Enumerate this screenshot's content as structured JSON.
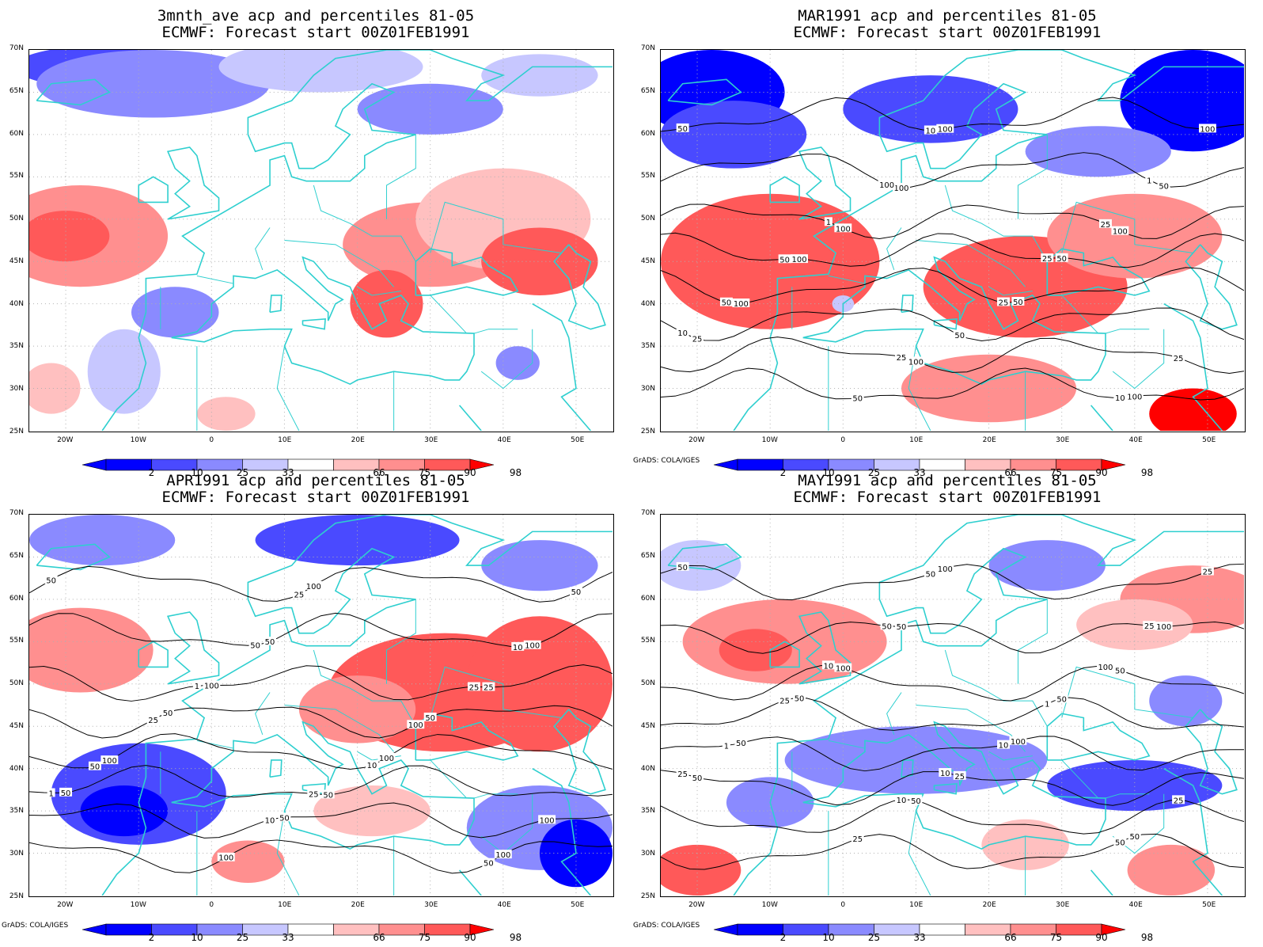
{
  "colors": {
    "p2": "#0000ff",
    "p10": "#4a4aff",
    "p25": "#8a8aff",
    "p33": "#c7c7ff",
    "p66": "#ffc0c0",
    "p75": "#ff8f8f",
    "p90": "#ff5959",
    "p98": "#ff0000",
    "coast": "#2ecfcf",
    "contour": "#000000",
    "grid": "#b0b0b0"
  },
  "lat_labels": [
    "70N",
    "65N",
    "60N",
    "55N",
    "50N",
    "45N",
    "40N",
    "35N",
    "30N",
    "25N"
  ],
  "lon_labels": [
    "20W",
    "10W",
    "0",
    "10E",
    "20E",
    "30E",
    "40E",
    "50E"
  ],
  "colorbar_labels": [
    "2",
    "10",
    "25",
    "33",
    "66",
    "75",
    "90",
    "98"
  ],
  "credit": "GrADS: COLA/IGES",
  "panels": [
    {
      "title_line1": "3mnth_ave acp and percentiles 81-05",
      "title_line2": "ECMWF: Forecast start 00Z01FEB1991",
      "show_credit": false,
      "contour_labels": [],
      "blobs": [
        {
          "lon": -15,
          "lat": 68,
          "rlon": 12,
          "rlat": 2.5,
          "cls": "p10"
        },
        {
          "lon": -8,
          "lat": 66,
          "rlon": 16,
          "rlat": 4,
          "cls": "p25"
        },
        {
          "lon": 15,
          "lat": 68,
          "rlon": 14,
          "rlat": 3,
          "cls": "p33"
        },
        {
          "lon": 30,
          "lat": 63,
          "rlon": 10,
          "rlat": 3,
          "cls": "p25"
        },
        {
          "lon": 45,
          "lat": 67,
          "rlon": 8,
          "rlat": 2.5,
          "cls": "p33"
        },
        {
          "lon": -18,
          "lat": 48,
          "rlon": 12,
          "rlat": 6,
          "cls": "p75"
        },
        {
          "lon": -20,
          "lat": 48,
          "rlon": 6,
          "rlat": 3,
          "cls": "p90"
        },
        {
          "lon": 30,
          "lat": 47,
          "rlon": 12,
          "rlat": 5,
          "cls": "p75"
        },
        {
          "lon": 40,
          "lat": 50,
          "rlon": 12,
          "rlat": 6,
          "cls": "p66"
        },
        {
          "lon": 24,
          "lat": 40,
          "rlon": 5,
          "rlat": 4,
          "cls": "p90"
        },
        {
          "lon": 45,
          "lat": 45,
          "rlon": 8,
          "rlat": 4,
          "cls": "p90"
        },
        {
          "lon": -5,
          "lat": 39,
          "rlon": 6,
          "rlat": 3,
          "cls": "p25"
        },
        {
          "lon": -12,
          "lat": 32,
          "rlon": 5,
          "rlat": 5,
          "cls": "p33"
        },
        {
          "lon": 42,
          "lat": 33,
          "rlon": 3,
          "rlat": 2,
          "cls": "p25"
        },
        {
          "lon": -22,
          "lat": 30,
          "rlon": 4,
          "rlat": 3,
          "cls": "p66"
        },
        {
          "lon": 2,
          "lat": 27,
          "rlon": 4,
          "rlat": 2,
          "cls": "p66"
        }
      ]
    },
    {
      "title_line1": "MAR1991 acp and percentiles 81-05",
      "title_line2": "ECMWF: Forecast start 00Z01FEB1991",
      "show_credit": true,
      "contour_labels": [
        "50",
        "100",
        "100",
        "100",
        "50",
        "25",
        "100",
        "100",
        "100",
        "50",
        "100",
        "50",
        "100",
        "50",
        "25",
        "50",
        "100",
        "100",
        "25",
        "50",
        "25",
        "10",
        "25",
        "10",
        "10",
        "1",
        "1",
        "25",
        "50"
      ],
      "blobs": [
        {
          "lon": -18,
          "lat": 65,
          "rlon": 10,
          "rlat": 5,
          "cls": "p2"
        },
        {
          "lon": -15,
          "lat": 60,
          "rlon": 10,
          "rlat": 4,
          "cls": "p10"
        },
        {
          "lon": 12,
          "lat": 63,
          "rlon": 12,
          "rlat": 4,
          "cls": "p10"
        },
        {
          "lon": 48,
          "lat": 64,
          "rlon": 10,
          "rlat": 6,
          "cls": "p2"
        },
        {
          "lon": 35,
          "lat": 58,
          "rlon": 10,
          "rlat": 3,
          "cls": "p25"
        },
        {
          "lon": -10,
          "lat": 45,
          "rlon": 15,
          "rlat": 8,
          "cls": "p90"
        },
        {
          "lon": 25,
          "lat": 42,
          "rlon": 14,
          "rlat": 6,
          "cls": "p90"
        },
        {
          "lon": 40,
          "lat": 48,
          "rlon": 12,
          "rlat": 5,
          "cls": "p75"
        },
        {
          "lon": 20,
          "lat": 30,
          "rlon": 12,
          "rlat": 4,
          "cls": "p75"
        },
        {
          "lon": 48,
          "lat": 27,
          "rlon": 6,
          "rlat": 3,
          "cls": "p98"
        },
        {
          "lon": 0,
          "lat": 40,
          "rlon": 1.5,
          "rlat": 1,
          "cls": "p33"
        }
      ]
    },
    {
      "title_line1": "APR1991 acp and percentiles 81-05",
      "title_line2": "ECMWF: Forecast start 00Z01FEB1991",
      "show_credit": true,
      "contour_labels": [
        "50",
        "50",
        "25",
        "50",
        "100",
        "50",
        "50",
        "100",
        "100",
        "100",
        "100",
        "50",
        "100",
        "50",
        "100",
        "100",
        "50",
        "50",
        "25",
        "25",
        "10",
        "1",
        "10",
        "50",
        "25",
        "10",
        "1",
        "100",
        "50",
        "25"
      ],
      "blobs": [
        {
          "lon": -15,
          "lat": 67,
          "rlon": 10,
          "rlat": 3,
          "cls": "p25"
        },
        {
          "lon": 20,
          "lat": 67,
          "rlon": 14,
          "rlat": 3,
          "cls": "p10"
        },
        {
          "lon": 45,
          "lat": 64,
          "rlon": 8,
          "rlat": 3,
          "cls": "p25"
        },
        {
          "lon": -18,
          "lat": 54,
          "rlon": 10,
          "rlat": 5,
          "cls": "p75"
        },
        {
          "lon": 32,
          "lat": 49,
          "rlon": 16,
          "rlat": 7,
          "cls": "p90"
        },
        {
          "lon": 45,
          "lat": 50,
          "rlon": 10,
          "rlat": 8,
          "cls": "p90"
        },
        {
          "lon": 20,
          "lat": 47,
          "rlon": 8,
          "rlat": 4,
          "cls": "p75"
        },
        {
          "lon": -10,
          "lat": 37,
          "rlon": 12,
          "rlat": 6,
          "cls": "p10"
        },
        {
          "lon": -12,
          "lat": 35,
          "rlon": 6,
          "rlat": 3,
          "cls": "p2"
        },
        {
          "lon": 45,
          "lat": 33,
          "rlon": 10,
          "rlat": 5,
          "cls": "p25"
        },
        {
          "lon": 50,
          "lat": 30,
          "rlon": 5,
          "rlat": 4,
          "cls": "p2"
        },
        {
          "lon": 22,
          "lat": 35,
          "rlon": 8,
          "rlat": 3,
          "cls": "p66"
        },
        {
          "lon": 5,
          "lat": 29,
          "rlon": 5,
          "rlat": 2.5,
          "cls": "p75"
        }
      ]
    },
    {
      "title_line1": "MAY1991 acp and percentiles 81-05",
      "title_line2": "ECMWF: Forecast start 00Z01FEB1991",
      "show_credit": true,
      "contour_labels": [
        "50",
        "50",
        "50",
        "50",
        "100",
        "50",
        "50",
        "50",
        "100",
        "100",
        "100",
        "50",
        "50",
        "25",
        "25",
        "25",
        "25",
        "50",
        "100",
        "25",
        "10",
        "25",
        "10",
        "50",
        "50",
        "25",
        "10",
        "1",
        "1",
        "10"
      ],
      "blobs": [
        {
          "lon": -20,
          "lat": 64,
          "rlon": 6,
          "rlat": 3,
          "cls": "p33"
        },
        {
          "lon": 28,
          "lat": 64,
          "rlon": 8,
          "rlat": 3,
          "cls": "p25"
        },
        {
          "lon": -8,
          "lat": 55,
          "rlon": 14,
          "rlat": 5,
          "cls": "p75"
        },
        {
          "lon": -12,
          "lat": 54,
          "rlon": 5,
          "rlat": 2.5,
          "cls": "p90"
        },
        {
          "lon": 48,
          "lat": 60,
          "rlon": 10,
          "rlat": 4,
          "cls": "p75"
        },
        {
          "lon": 40,
          "lat": 57,
          "rlon": 8,
          "rlat": 3,
          "cls": "p66"
        },
        {
          "lon": 10,
          "lat": 41,
          "rlon": 18,
          "rlat": 4,
          "cls": "p25"
        },
        {
          "lon": 40,
          "lat": 38,
          "rlon": 12,
          "rlat": 3,
          "cls": "p10"
        },
        {
          "lon": -10,
          "lat": 36,
          "rlon": 6,
          "rlat": 3,
          "cls": "p25"
        },
        {
          "lon": -20,
          "lat": 28,
          "rlon": 6,
          "rlat": 3,
          "cls": "p90"
        },
        {
          "lon": 25,
          "lat": 31,
          "rlon": 6,
          "rlat": 3,
          "cls": "p66"
        },
        {
          "lon": 45,
          "lat": 28,
          "rlon": 6,
          "rlat": 3,
          "cls": "p75"
        },
        {
          "lon": 47,
          "lat": 48,
          "rlon": 5,
          "rlat": 3,
          "cls": "p25"
        }
      ]
    }
  ]
}
